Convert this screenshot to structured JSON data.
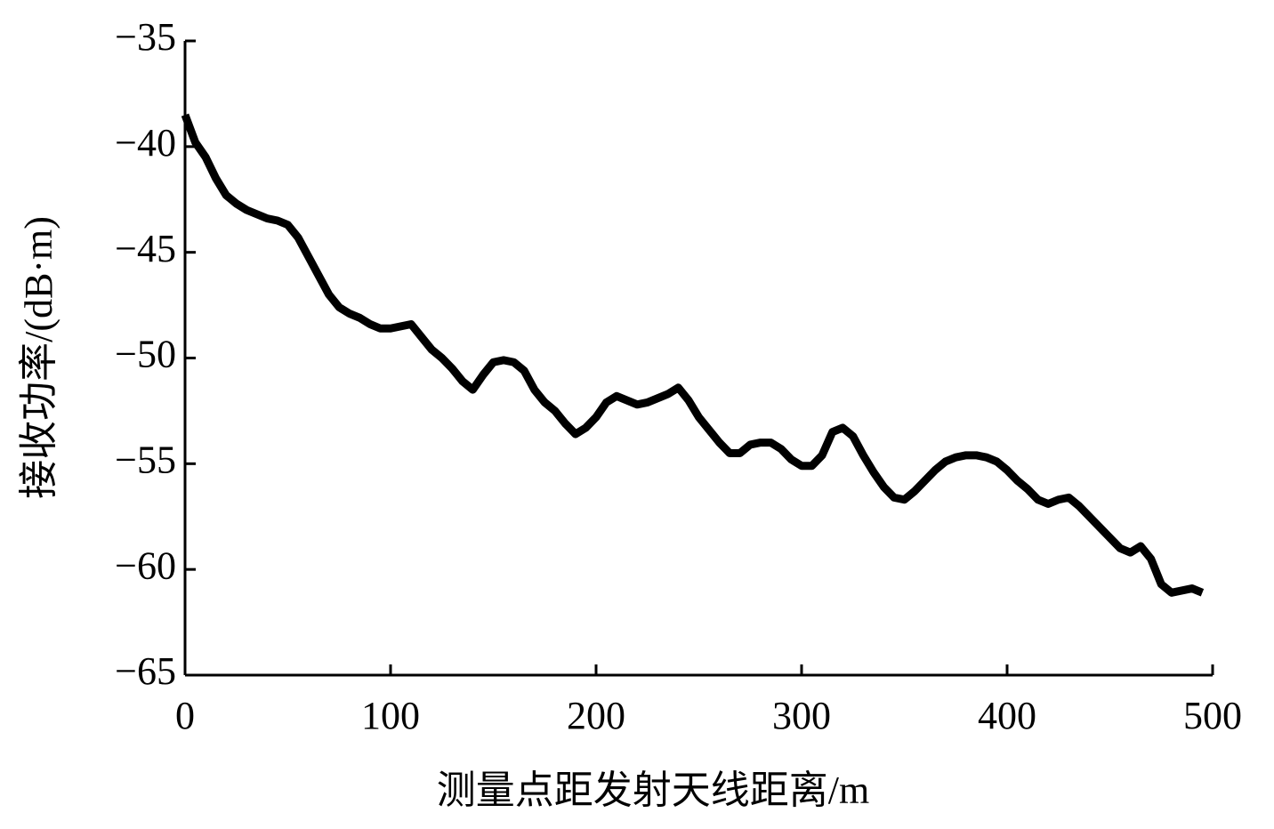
{
  "chart_data": {
    "type": "line",
    "x_label": "测量点距发射天线距离/m",
    "y_label": "接收功率/(dB·m)",
    "x": [
      0,
      5,
      10,
      15,
      20,
      25,
      30,
      35,
      40,
      45,
      50,
      55,
      60,
      65,
      70,
      75,
      80,
      85,
      90,
      95,
      100,
      105,
      110,
      115,
      120,
      125,
      130,
      135,
      140,
      145,
      150,
      155,
      160,
      165,
      170,
      175,
      180,
      185,
      190,
      195,
      200,
      205,
      210,
      215,
      220,
      225,
      230,
      235,
      240,
      245,
      250,
      255,
      260,
      265,
      270,
      275,
      280,
      285,
      290,
      295,
      300,
      305,
      310,
      315,
      320,
      325,
      330,
      335,
      340,
      345,
      350,
      355,
      360,
      365,
      370,
      375,
      380,
      385,
      390,
      395,
      400,
      405,
      410,
      415,
      420,
      425,
      430,
      435,
      440,
      445,
      450,
      455,
      460,
      465,
      470,
      475,
      480,
      485,
      490,
      495
    ],
    "series": [
      {
        "color": "#000000",
        "values": [
          -38.5,
          -39.8,
          -40.5,
          -41.5,
          -42.3,
          -42.7,
          -43.0,
          -43.2,
          -43.4,
          -43.5,
          -43.7,
          -44.3,
          -45.2,
          -46.1,
          -47.0,
          -47.6,
          -47.9,
          -48.1,
          -48.4,
          -48.6,
          -48.6,
          -48.5,
          -48.4,
          -49.0,
          -49.6,
          -50.0,
          -50.5,
          -51.1,
          -51.5,
          -50.8,
          -50.2,
          -50.1,
          -50.2,
          -50.6,
          -51.5,
          -52.1,
          -52.5,
          -53.1,
          -53.6,
          -53.3,
          -52.8,
          -52.1,
          -51.8,
          -52.0,
          -52.2,
          -52.1,
          -51.9,
          -51.7,
          -51.4,
          -52.0,
          -52.8,
          -53.4,
          -54.0,
          -54.5,
          -54.5,
          -54.1,
          -54.0,
          -54.0,
          -54.3,
          -54.8,
          -55.1,
          -55.1,
          -54.6,
          -53.5,
          -53.3,
          -53.7,
          -54.6,
          -55.4,
          -56.1,
          -56.6,
          -56.7,
          -56.3,
          -55.8,
          -55.3,
          -54.9,
          -54.7,
          -54.6,
          -54.6,
          -54.7,
          -54.9,
          -55.3,
          -55.8,
          -56.2,
          -56.7,
          -56.9,
          -56.7,
          -56.6,
          -57.0,
          -57.5,
          -58.0,
          -58.5,
          -59.0,
          -59.2,
          -58.9,
          -59.5,
          -60.7,
          -61.1,
          -61.0,
          -60.9,
          -61.1
        ]
      }
    ],
    "xlim": [
      0,
      500
    ],
    "xticks": [
      0,
      100,
      200,
      300,
      400,
      500
    ],
    "ylim": [
      -65,
      -35
    ],
    "yticks": [
      {
        "value": -65,
        "label": "−65"
      },
      {
        "value": -60,
        "label": "−60"
      },
      {
        "value": -55,
        "label": "−55"
      },
      {
        "value": -50,
        "label": "−50"
      },
      {
        "value": -45,
        "label": "−45"
      },
      {
        "value": -40,
        "label": "−40"
      },
      {
        "value": -35,
        "label": "−35"
      }
    ]
  }
}
